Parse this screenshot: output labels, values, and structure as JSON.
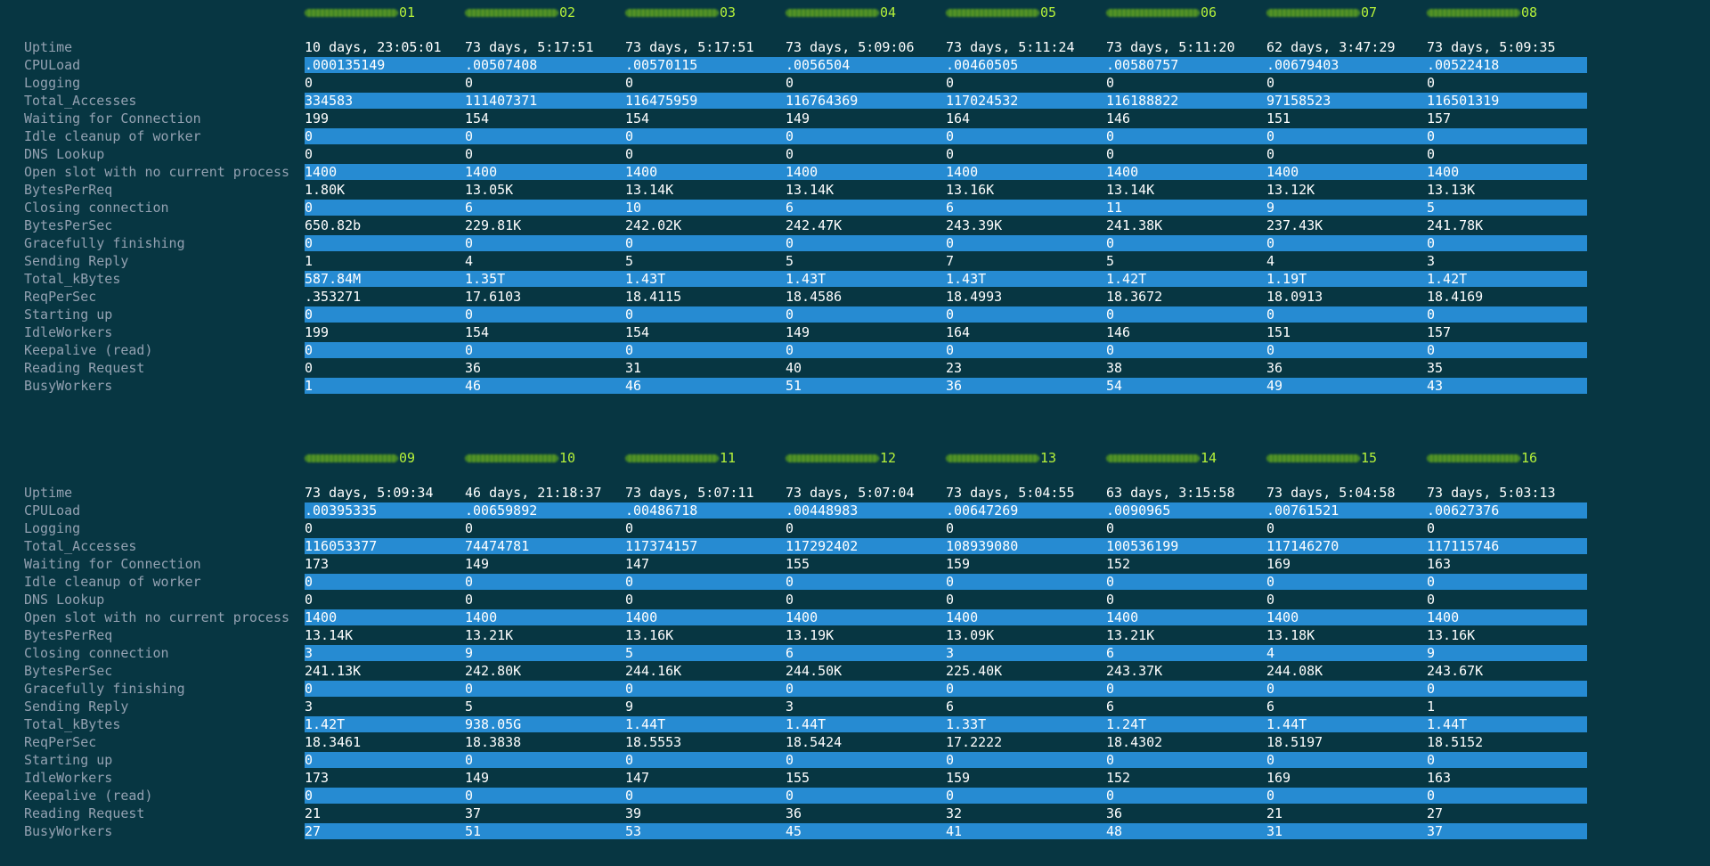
{
  "labels": [
    "Uptime",
    "CPULoad",
    "Logging",
    "Total_Accesses",
    "Waiting for Connection",
    "Idle cleanup of worker",
    "DNS Lookup",
    "Open slot with no current process",
    "BytesPerReq",
    "Closing connection",
    "BytesPerSec",
    "Gracefully finishing",
    "Sending Reply",
    "Total_kBytes",
    "ReqPerSec",
    "Starting up",
    "IdleWorkers",
    "Keepalive (read)",
    "Reading Request",
    "BusyWorkers"
  ],
  "blocks": [
    {
      "hosts": [
        "01",
        "02",
        "03",
        "04",
        "05",
        "06",
        "07",
        "08"
      ],
      "rows": [
        [
          "10 days, 23:05:01",
          "73 days, 5:17:51",
          "73 days, 5:17:51",
          "73 days, 5:09:06",
          "73 days, 5:11:24",
          "73 days, 5:11:20",
          "62 days, 3:47:29",
          "73 days, 5:09:35"
        ],
        [
          ".000135149",
          ".00507408",
          ".00570115",
          ".0056504",
          ".00460505",
          ".00580757",
          ".00679403",
          ".00522418"
        ],
        [
          "0",
          "0",
          "0",
          "0",
          "0",
          "0",
          "0",
          "0"
        ],
        [
          "334583",
          "111407371",
          "116475959",
          "116764369",
          "117024532",
          "116188822",
          "97158523",
          "116501319"
        ],
        [
          "199",
          "154",
          "154",
          "149",
          "164",
          "146",
          "151",
          "157"
        ],
        [
          "0",
          "0",
          "0",
          "0",
          "0",
          "0",
          "0",
          "0"
        ],
        [
          "0",
          "0",
          "0",
          "0",
          "0",
          "0",
          "0",
          "0"
        ],
        [
          "1400",
          "1400",
          "1400",
          "1400",
          "1400",
          "1400",
          "1400",
          "1400"
        ],
        [
          "1.80K",
          "13.05K",
          "13.14K",
          "13.14K",
          "13.16K",
          "13.14K",
          "13.12K",
          "13.13K"
        ],
        [
          "0",
          "6",
          "10",
          "6",
          "6",
          "11",
          "9",
          "5"
        ],
        [
          "650.82b",
          "229.81K",
          "242.02K",
          "242.47K",
          "243.39K",
          "241.38K",
          "237.43K",
          "241.78K"
        ],
        [
          "0",
          "0",
          "0",
          "0",
          "0",
          "0",
          "0",
          "0"
        ],
        [
          "1",
          "4",
          "5",
          "5",
          "7",
          "5",
          "4",
          "3"
        ],
        [
          "587.84M",
          "1.35T",
          "1.43T",
          "1.43T",
          "1.43T",
          "1.42T",
          "1.19T",
          "1.42T"
        ],
        [
          ".353271",
          "17.6103",
          "18.4115",
          "18.4586",
          "18.4993",
          "18.3672",
          "18.0913",
          "18.4169"
        ],
        [
          "0",
          "0",
          "0",
          "0",
          "0",
          "0",
          "0",
          "0"
        ],
        [
          "199",
          "154",
          "154",
          "149",
          "164",
          "146",
          "151",
          "157"
        ],
        [
          "0",
          "0",
          "0",
          "0",
          "0",
          "0",
          "0",
          "0"
        ],
        [
          "0",
          "36",
          "31",
          "40",
          "23",
          "38",
          "36",
          "35"
        ],
        [
          "1",
          "46",
          "46",
          "51",
          "36",
          "54",
          "49",
          "43"
        ]
      ]
    },
    {
      "hosts": [
        "09",
        "10",
        "11",
        "12",
        "13",
        "14",
        "15",
        "16"
      ],
      "rows": [
        [
          "73 days, 5:09:34",
          "46 days, 21:18:37",
          "73 days, 5:07:11",
          "73 days, 5:07:04",
          "73 days, 5:04:55",
          "63 days, 3:15:58",
          "73 days, 5:04:58",
          "73 days, 5:03:13"
        ],
        [
          ".00395335",
          ".00659892",
          ".00486718",
          ".00448983",
          ".00647269",
          ".0090965",
          ".00761521",
          ".00627376"
        ],
        [
          "0",
          "0",
          "0",
          "0",
          "0",
          "0",
          "0",
          "0"
        ],
        [
          "116053377",
          "74474781",
          "117374157",
          "117292402",
          "108939080",
          "100536199",
          "117146270",
          "117115746"
        ],
        [
          "173",
          "149",
          "147",
          "155",
          "159",
          "152",
          "169",
          "163"
        ],
        [
          "0",
          "0",
          "0",
          "0",
          "0",
          "0",
          "0",
          "0"
        ],
        [
          "0",
          "0",
          "0",
          "0",
          "0",
          "0",
          "0",
          "0"
        ],
        [
          "1400",
          "1400",
          "1400",
          "1400",
          "1400",
          "1400",
          "1400",
          "1400"
        ],
        [
          "13.14K",
          "13.21K",
          "13.16K",
          "13.19K",
          "13.09K",
          "13.21K",
          "13.18K",
          "13.16K"
        ],
        [
          "3",
          "9",
          "5",
          "6",
          "3",
          "6",
          "4",
          "9"
        ],
        [
          "241.13K",
          "242.80K",
          "244.16K",
          "244.50K",
          "225.40K",
          "243.37K",
          "244.08K",
          "243.67K"
        ],
        [
          "0",
          "0",
          "0",
          "0",
          "0",
          "0",
          "0",
          "0"
        ],
        [
          "3",
          "5",
          "9",
          "3",
          "6",
          "6",
          "6",
          "1"
        ],
        [
          "1.42T",
          "938.05G",
          "1.44T",
          "1.44T",
          "1.33T",
          "1.24T",
          "1.44T",
          "1.44T"
        ],
        [
          "18.3461",
          "18.3838",
          "18.5553",
          "18.5424",
          "17.2222",
          "18.4302",
          "18.5197",
          "18.5152"
        ],
        [
          "0",
          "0",
          "0",
          "0",
          "0",
          "0",
          "0",
          "0"
        ],
        [
          "173",
          "149",
          "147",
          "155",
          "159",
          "152",
          "169",
          "163"
        ],
        [
          "0",
          "0",
          "0",
          "0",
          "0",
          "0",
          "0",
          "0"
        ],
        [
          "21",
          "37",
          "39",
          "36",
          "32",
          "36",
          "21",
          "27"
        ],
        [
          "27",
          "51",
          "53",
          "45",
          "41",
          "48",
          "31",
          "37"
        ]
      ]
    }
  ],
  "colors": {
    "background": "#073642",
    "row_highlight": "#268bd2",
    "label_text": "#93a1b1",
    "value_text": "#ffffff",
    "host_text": "#b6f23a"
  }
}
